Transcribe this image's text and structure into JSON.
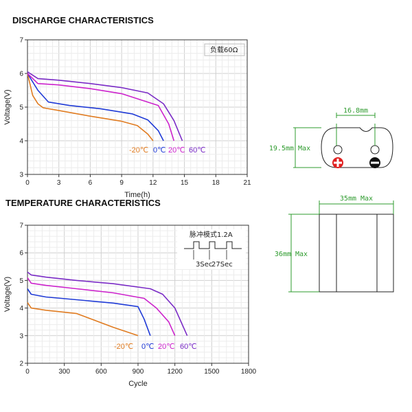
{
  "discharge": {
    "title": "DISCHARGE CHARACTERISTICS",
    "chart_data": {
      "type": "line",
      "title": "",
      "xlabel": "Time(h)",
      "ylabel": "Voltage(V)",
      "xlim": [
        0,
        21
      ],
      "ylim": [
        3,
        7
      ],
      "xticks": [
        0,
        3,
        6,
        9,
        12,
        15,
        18,
        21
      ],
      "yticks": [
        3,
        4,
        5,
        6,
        7
      ],
      "grid": true,
      "annotation": "负载60Ω",
      "series": [
        {
          "name": "-20℃",
          "color": "#e07b20",
          "x": [
            0,
            0.5,
            1,
            1.5,
            3,
            6,
            9,
            10.5,
            11.5,
            12
          ],
          "y": [
            6.0,
            5.35,
            5.1,
            4.98,
            4.9,
            4.73,
            4.58,
            4.45,
            4.2,
            4.0
          ]
        },
        {
          "name": "0℃",
          "color": "#1f3ad6",
          "x": [
            0,
            1,
            2,
            4,
            7,
            10,
            11.5,
            12.5,
            13
          ],
          "y": [
            6.0,
            5.5,
            5.15,
            5.05,
            4.95,
            4.8,
            4.62,
            4.3,
            4.0
          ]
        },
        {
          "name": "20℃",
          "color": "#cc22cc",
          "x": [
            0,
            1,
            3,
            6,
            9,
            11,
            12.5,
            13.5,
            14
          ],
          "y": [
            6.0,
            5.7,
            5.66,
            5.55,
            5.4,
            5.2,
            5.05,
            4.5,
            4.0
          ]
        },
        {
          "name": "60℃",
          "color": "#7a2bc6",
          "x": [
            0,
            1,
            3,
            6,
            9,
            11.5,
            13,
            14,
            14.8
          ],
          "y": [
            6.05,
            5.85,
            5.8,
            5.7,
            5.58,
            5.42,
            5.1,
            4.6,
            4.0
          ]
        }
      ]
    }
  },
  "temperature": {
    "title": "TEMPERATURE CHARACTERISTICS",
    "chart_data": {
      "type": "line",
      "title": "",
      "xlabel": "Cycle",
      "ylabel": "Voltage(V)",
      "xlim": [
        0,
        1800
      ],
      "ylim": [
        2,
        7
      ],
      "xticks": [
        0,
        300,
        600,
        900,
        1200,
        1500,
        1800
      ],
      "yticks": [
        2,
        3,
        4,
        5,
        6,
        7
      ],
      "grid": true,
      "pulse_label": "脉冲模式1.2A",
      "pulse_on_label": "3Sec",
      "pulse_off_label": "27Sec",
      "series": [
        {
          "name": "-20℃",
          "color": "#e07b20",
          "x": [
            0,
            30,
            150,
            400,
            700,
            900
          ],
          "y": [
            4.2,
            4.0,
            3.92,
            3.8,
            3.3,
            3.0
          ]
        },
        {
          "name": "0℃",
          "color": "#1f3ad6",
          "x": [
            0,
            30,
            150,
            400,
            700,
            900,
            950,
            1000
          ],
          "y": [
            4.7,
            4.5,
            4.4,
            4.3,
            4.18,
            4.05,
            3.6,
            3.0
          ]
        },
        {
          "name": "20℃",
          "color": "#cc22cc",
          "x": [
            0,
            30,
            150,
            400,
            700,
            950,
            1050,
            1150,
            1200
          ],
          "y": [
            5.1,
            4.9,
            4.82,
            4.7,
            4.55,
            4.35,
            4.0,
            3.5,
            3.0
          ]
        },
        {
          "name": "60℃",
          "color": "#7a2bc6",
          "x": [
            0,
            30,
            150,
            400,
            700,
            1000,
            1100,
            1200,
            1300
          ],
          "y": [
            5.3,
            5.2,
            5.12,
            5.0,
            4.88,
            4.7,
            4.5,
            4.0,
            3.0
          ]
        }
      ]
    }
  },
  "dimensions": {
    "top_view": {
      "pin_spacing": "16.8mm",
      "height": "19.5mm Max"
    },
    "side_view": {
      "width": "35mm Max",
      "height": "36mm Max"
    },
    "dim_color": "#2e9b2e",
    "positive_color": "#e02020"
  }
}
